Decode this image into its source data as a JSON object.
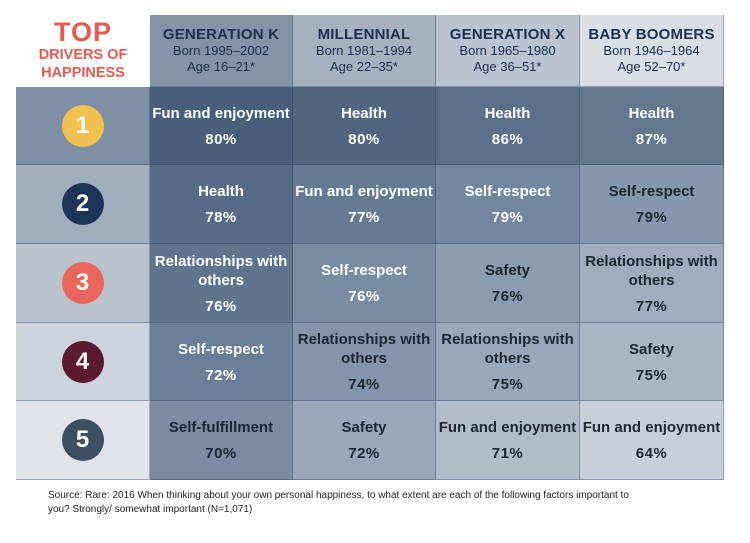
{
  "title": {
    "line1": "TOP",
    "line2": "DRIVERS OF",
    "line3": "HAPPINESS"
  },
  "colors": {
    "title": "#e35a4f",
    "badges": [
      "#f0c050",
      "#1c3558",
      "#e9675a",
      "#5c1a30",
      "#3f4f62"
    ]
  },
  "generations": [
    {
      "name": "GENERATION K",
      "born": "Born 1995–2002",
      "age": "Age 16–21*"
    },
    {
      "name": "MILLENNIAL",
      "born": "Born 1981–1994",
      "age": "Age 22–35*"
    },
    {
      "name": "GENERATION X",
      "born": "Born 1965–1980",
      "age": "Age 36–51*"
    },
    {
      "name": "BABY BOOMERS",
      "born": "Born 1946–1964",
      "age": "Age 52–70*"
    }
  ],
  "rows": [
    {
      "rank": "1",
      "cells": [
        {
          "label": "Fun and enjoyment",
          "pct": "80%"
        },
        {
          "label": "Health",
          "pct": "80%"
        },
        {
          "label": "Health",
          "pct": "86%"
        },
        {
          "label": "Health",
          "pct": "87%"
        }
      ]
    },
    {
      "rank": "2",
      "cells": [
        {
          "label": "Health",
          "pct": "78%"
        },
        {
          "label": "Fun and enjoyment",
          "pct": "77%"
        },
        {
          "label": "Self-respect",
          "pct": "79%"
        },
        {
          "label": "Self-respect",
          "pct": "79%"
        }
      ]
    },
    {
      "rank": "3",
      "cells": [
        {
          "label": "Relationships with others",
          "pct": "76%"
        },
        {
          "label": "Self-respect",
          "pct": "76%"
        },
        {
          "label": "Safety",
          "pct": "76%"
        },
        {
          "label": "Relationships with others",
          "pct": "77%"
        }
      ]
    },
    {
      "rank": "4",
      "cells": [
        {
          "label": "Self-respect",
          "pct": "72%"
        },
        {
          "label": "Relationships with others",
          "pct": "74%"
        },
        {
          "label": "Relationships with others",
          "pct": "75%"
        },
        {
          "label": "Safety",
          "pct": "75%"
        }
      ]
    },
    {
      "rank": "5",
      "cells": [
        {
          "label": "Self-fulfillment",
          "pct": "70%"
        },
        {
          "label": "Safety",
          "pct": "72%"
        },
        {
          "label": "Fun and enjoyment",
          "pct": "71%"
        },
        {
          "label": "Fun and enjoyment",
          "pct": "64%"
        }
      ]
    }
  ],
  "source": "Source: Rare: 2016 When thinking about your own personal happiness, to what extent are each of the following factors important to you? Strongly/ somewhat important (N=1,071)"
}
